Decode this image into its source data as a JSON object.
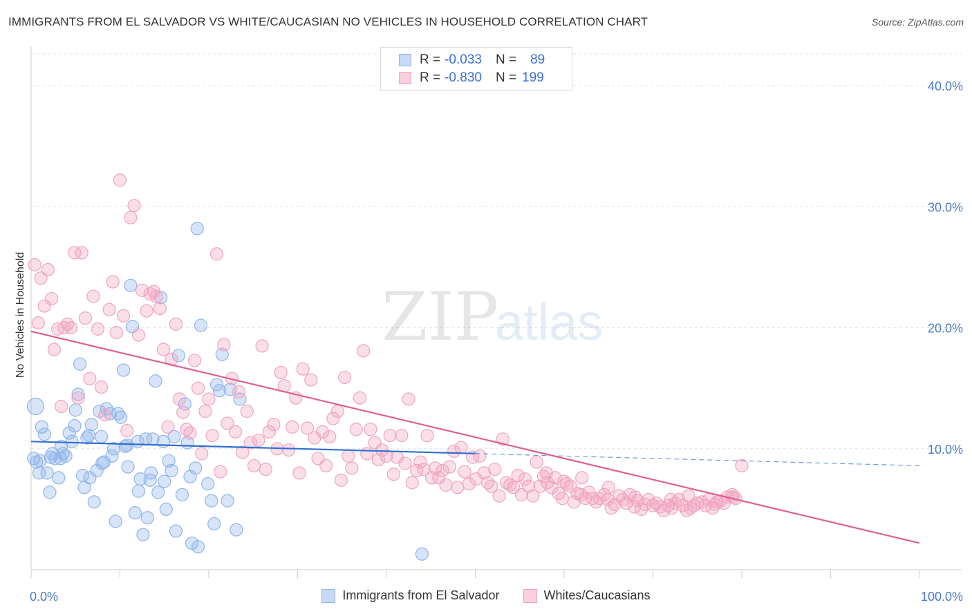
{
  "title": "IMMIGRANTS FROM EL SALVADOR VS WHITE/CAUCASIAN NO VEHICLES IN HOUSEHOLD CORRELATION CHART",
  "source": "Source: ZipAtlas.com",
  "watermark": {
    "zip": "ZIP",
    "atlas": "atlas"
  },
  "legend": {
    "rows": [
      {
        "r_label": "R = ",
        "r_value": "-0.033",
        "n_label": "N = ",
        "n_value": "89",
        "color": "#8fb4ea"
      },
      {
        "r_label": "R = ",
        "r_value": "-0.830",
        "n_label": "N = ",
        "n_value": "199",
        "color": "#f0a3bf"
      }
    ]
  },
  "bottom_legend": [
    "Immigrants from El Salvador",
    "Whites/Caucasians"
  ],
  "chart_data": {
    "type": "scatter",
    "title": "IMMIGRANTS FROM EL SALVADOR VS WHITE/CAUCASIAN NO VEHICLES IN HOUSEHOLD CORRELATION CHART",
    "xlabel": "",
    "ylabel": "No Vehicles in Household",
    "xlim": [
      0,
      100
    ],
    "ylim": [
      0,
      42
    ],
    "y_ticks": [
      "10.0%",
      "20.0%",
      "30.0%",
      "40.0%"
    ],
    "y_tick_values": [
      10,
      20,
      30,
      40
    ],
    "x_ticks": [
      "0.0%",
      "100.0%"
    ],
    "grid": true,
    "series": [
      {
        "name": "Immigrants from El Salvador",
        "color": "#8fb4ea",
        "line_color": "#2f6fd0",
        "trend": {
          "x0": 0,
          "y0": 10.6,
          "x1": 50,
          "y1": 9.6,
          "dashed_to": 100,
          "dashed_y": 8.6
        },
        "points": [
          [
            0.5,
            13.5
          ],
          [
            0.3,
            9.2
          ],
          [
            0.6,
            8.9
          ],
          [
            0.9,
            8.0
          ],
          [
            1.2,
            11.8
          ],
          [
            1.5,
            11.2
          ],
          [
            1.8,
            8.0
          ],
          [
            2.1,
            6.4
          ],
          [
            2.4,
            9.6
          ],
          [
            2.7,
            9.2
          ],
          [
            3.1,
            7.6
          ],
          [
            3.4,
            10.2
          ],
          [
            3.6,
            9.6
          ],
          [
            3.9,
            9.4
          ],
          [
            4.3,
            11.3
          ],
          [
            4.6,
            10.6
          ],
          [
            4.9,
            11.9
          ],
          [
            5.3,
            14.5
          ],
          [
            5.5,
            17.0
          ],
          [
            5.8,
            7.8
          ],
          [
            6.0,
            6.8
          ],
          [
            6.3,
            10.9
          ],
          [
            6.6,
            7.6
          ],
          [
            6.8,
            12.0
          ],
          [
            7.1,
            5.6
          ],
          [
            7.4,
            8.2
          ],
          [
            7.7,
            13.1
          ],
          [
            7.9,
            11.0
          ],
          [
            8.2,
            8.9
          ],
          [
            8.5,
            13.3
          ],
          [
            8.9,
            12.9
          ],
          [
            9.1,
            9.4
          ],
          [
            9.5,
            4.0
          ],
          [
            9.8,
            12.9
          ],
          [
            10.1,
            12.6
          ],
          [
            10.4,
            16.5
          ],
          [
            10.6,
            10.2
          ],
          [
            10.9,
            8.5
          ],
          [
            11.2,
            23.5
          ],
          [
            11.4,
            20.1
          ],
          [
            11.7,
            4.7
          ],
          [
            12.0,
            10.6
          ],
          [
            12.3,
            7.5
          ],
          [
            12.6,
            2.9
          ],
          [
            12.9,
            10.8
          ],
          [
            13.1,
            4.3
          ],
          [
            13.4,
            7.4
          ],
          [
            13.7,
            10.8
          ],
          [
            14.0,
            15.6
          ],
          [
            14.3,
            6.4
          ],
          [
            14.6,
            22.5
          ],
          [
            14.9,
            10.6
          ],
          [
            15.2,
            5.0
          ],
          [
            15.5,
            9.0
          ],
          [
            15.8,
            8.2
          ],
          [
            16.1,
            11.0
          ],
          [
            16.3,
            3.2
          ],
          [
            16.6,
            17.7
          ],
          [
            17.0,
            6.2
          ],
          [
            17.3,
            13.7
          ],
          [
            17.6,
            10.5
          ],
          [
            17.9,
            7.7
          ],
          [
            18.1,
            2.2
          ],
          [
            18.5,
            8.4
          ],
          [
            18.8,
            1.9
          ],
          [
            19.1,
            20.2
          ],
          [
            18.7,
            28.2
          ],
          [
            19.9,
            7.1
          ],
          [
            20.3,
            5.7
          ],
          [
            20.6,
            3.8
          ],
          [
            20.9,
            15.3
          ],
          [
            21.2,
            14.8
          ],
          [
            21.5,
            17.8
          ],
          [
            22.1,
            5.7
          ],
          [
            22.4,
            14.9
          ],
          [
            23.1,
            3.3
          ],
          [
            23.5,
            14.1
          ],
          [
            44.0,
            1.3
          ],
          [
            1.0,
            9.0
          ],
          [
            2.2,
            9.3
          ],
          [
            3.3,
            9.2
          ],
          [
            5.0,
            13.2
          ],
          [
            6.5,
            11.1
          ],
          [
            8.0,
            8.8
          ],
          [
            9.3,
            10.0
          ],
          [
            10.8,
            10.3
          ],
          [
            12.1,
            6.5
          ],
          [
            13.5,
            8.0
          ],
          [
            15.0,
            7.3
          ]
        ]
      },
      {
        "name": "Whites/Caucasians",
        "color": "#f0a3bf",
        "line_color": "#e0608e",
        "trend": {
          "x0": 0,
          "y0": 19.7,
          "x1": 100,
          "y1": 2.2
        },
        "points": [
          [
            0.4,
            25.2
          ],
          [
            0.8,
            20.4
          ],
          [
            1.1,
            24.1
          ],
          [
            1.5,
            21.8
          ],
          [
            1.9,
            24.8
          ],
          [
            2.3,
            22.4
          ],
          [
            2.6,
            18.2
          ],
          [
            3.0,
            19.9
          ],
          [
            3.4,
            13.5
          ],
          [
            3.7,
            20.0
          ],
          [
            4.1,
            20.3
          ],
          [
            4.5,
            20.0
          ],
          [
            4.9,
            26.2
          ],
          [
            5.3,
            14.2
          ],
          [
            5.7,
            26.2
          ],
          [
            6.1,
            20.8
          ],
          [
            6.6,
            15.8
          ],
          [
            7.0,
            22.6
          ],
          [
            7.5,
            19.9
          ],
          [
            7.9,
            15.1
          ],
          [
            8.3,
            12.8
          ],
          [
            8.8,
            21.5
          ],
          [
            9.2,
            23.8
          ],
          [
            9.6,
            19.6
          ],
          [
            10.0,
            32.2
          ],
          [
            10.4,
            21.0
          ],
          [
            10.8,
            11.5
          ],
          [
            11.2,
            29.1
          ],
          [
            11.6,
            30.1
          ],
          [
            12.1,
            19.4
          ],
          [
            12.5,
            23.1
          ],
          [
            13.0,
            21.4
          ],
          [
            13.4,
            22.8
          ],
          [
            13.8,
            23.0
          ],
          [
            14.1,
            22.6
          ],
          [
            14.5,
            21.6
          ],
          [
            14.9,
            18.2
          ],
          [
            15.4,
            11.8
          ],
          [
            15.8,
            17.4
          ],
          [
            16.3,
            20.3
          ],
          [
            16.7,
            14.1
          ],
          [
            17.1,
            13.0
          ],
          [
            17.5,
            11.6
          ],
          [
            17.9,
            11.3
          ],
          [
            18.4,
            17.3
          ],
          [
            18.8,
            15.0
          ],
          [
            19.2,
            9.6
          ],
          [
            19.6,
            13.1
          ],
          [
            20.0,
            14.1
          ],
          [
            20.4,
            11.1
          ],
          [
            20.9,
            26.1
          ],
          [
            21.3,
            8.1
          ],
          [
            21.7,
            18.6
          ],
          [
            22.1,
            12.1
          ],
          [
            22.6,
            15.8
          ],
          [
            23.0,
            11.4
          ],
          [
            23.4,
            14.7
          ],
          [
            23.8,
            9.7
          ],
          [
            24.3,
            13.1
          ],
          [
            24.7,
            10.5
          ],
          [
            25.1,
            8.6
          ],
          [
            25.6,
            10.7
          ],
          [
            26.0,
            18.5
          ],
          [
            26.4,
            8.3
          ],
          [
            26.8,
            11.4
          ],
          [
            27.3,
            12.0
          ],
          [
            27.7,
            10.0
          ],
          [
            28.1,
            16.3
          ],
          [
            28.5,
            15.2
          ],
          [
            29.0,
            9.9
          ],
          [
            29.4,
            11.8
          ],
          [
            29.8,
            14.2
          ],
          [
            30.2,
            8.0
          ],
          [
            30.6,
            16.6
          ],
          [
            31.1,
            11.7
          ],
          [
            31.5,
            15.7
          ],
          [
            31.9,
            10.9
          ],
          [
            32.3,
            9.2
          ],
          [
            32.8,
            11.4
          ],
          [
            33.2,
            8.6
          ],
          [
            33.6,
            11.0
          ],
          [
            34.0,
            12.5
          ],
          [
            34.5,
            13.1
          ],
          [
            34.9,
            7.4
          ],
          [
            35.3,
            15.9
          ],
          [
            35.7,
            9.4
          ],
          [
            36.1,
            8.4
          ],
          [
            36.6,
            11.6
          ],
          [
            37.0,
            14.2
          ],
          [
            37.4,
            18.1
          ],
          [
            37.8,
            9.6
          ],
          [
            38.2,
            11.6
          ],
          [
            38.7,
            10.5
          ],
          [
            39.1,
            9.1
          ],
          [
            39.5,
            9.9
          ],
          [
            40.0,
            9.4
          ],
          [
            40.4,
            11.1
          ],
          [
            40.8,
            7.9
          ],
          [
            41.2,
            9.3
          ],
          [
            41.7,
            11.1
          ],
          [
            42.1,
            8.8
          ],
          [
            42.5,
            14.1
          ],
          [
            42.9,
            7.2
          ],
          [
            43.4,
            8.2
          ],
          [
            43.8,
            8.9
          ],
          [
            44.2,
            8.3
          ],
          [
            44.6,
            11.1
          ],
          [
            45.1,
            7.6
          ],
          [
            45.5,
            8.4
          ],
          [
            45.9,
            7.6
          ],
          [
            46.3,
            8.2
          ],
          [
            46.7,
            7.0
          ],
          [
            47.1,
            8.5
          ],
          [
            47.6,
            9.8
          ],
          [
            48.0,
            6.8
          ],
          [
            48.4,
            10.1
          ],
          [
            48.8,
            8.1
          ],
          [
            49.3,
            7.1
          ],
          [
            49.7,
            9.3
          ],
          [
            50.1,
            7.5
          ],
          [
            50.5,
            9.4
          ],
          [
            51.0,
            8.0
          ],
          [
            51.4,
            7.2
          ],
          [
            51.8,
            6.9
          ],
          [
            52.2,
            8.3
          ],
          [
            52.7,
            6.1
          ],
          [
            53.1,
            10.8
          ],
          [
            53.5,
            7.2
          ],
          [
            53.9,
            7.0
          ],
          [
            54.3,
            6.8
          ],
          [
            54.8,
            7.8
          ],
          [
            55.2,
            6.2
          ],
          [
            55.6,
            7.5
          ],
          [
            56.0,
            6.9
          ],
          [
            56.5,
            6.1
          ],
          [
            56.9,
            8.9
          ],
          [
            57.3,
            6.9
          ],
          [
            57.7,
            7.7
          ],
          [
            58.1,
            7.2
          ],
          [
            58.6,
            6.8
          ],
          [
            59.0,
            7.6
          ],
          [
            59.4,
            6.3
          ],
          [
            59.8,
            5.9
          ],
          [
            60.3,
            7.1
          ],
          [
            60.7,
            6.9
          ],
          [
            61.1,
            5.6
          ],
          [
            61.5,
            6.3
          ],
          [
            61.9,
            6.2
          ],
          [
            62.4,
            5.9
          ],
          [
            62.8,
            6.4
          ],
          [
            63.2,
            5.9
          ],
          [
            63.6,
            5.6
          ],
          [
            64.0,
            5.9
          ],
          [
            64.5,
            6.2
          ],
          [
            64.9,
            5.8
          ],
          [
            65.3,
            5.1
          ],
          [
            65.7,
            5.4
          ],
          [
            66.2,
            6.1
          ],
          [
            66.6,
            5.8
          ],
          [
            67.0,
            5.5
          ],
          [
            67.4,
            6.2
          ],
          [
            67.9,
            5.2
          ],
          [
            68.3,
            5.7
          ],
          [
            68.7,
            5.0
          ],
          [
            69.1,
            5.4
          ],
          [
            69.5,
            5.8
          ],
          [
            70.0,
            5.3
          ],
          [
            70.4,
            5.5
          ],
          [
            70.8,
            5.2
          ],
          [
            71.2,
            4.9
          ],
          [
            71.7,
            5.3
          ],
          [
            72.1,
            5.1
          ],
          [
            72.5,
            5.5
          ],
          [
            72.9,
            5.8
          ],
          [
            73.4,
            5.3
          ],
          [
            73.8,
            4.9
          ],
          [
            74.2,
            5.1
          ],
          [
            74.6,
            5.3
          ],
          [
            75.0,
            5.5
          ],
          [
            75.5,
            5.6
          ],
          [
            75.9,
            5.3
          ],
          [
            76.3,
            5.8
          ],
          [
            76.7,
            5.1
          ],
          [
            77.2,
            5.6
          ],
          [
            77.6,
            5.7
          ],
          [
            78.0,
            5.5
          ],
          [
            78.4,
            6.0
          ],
          [
            78.9,
            6.2
          ],
          [
            79.3,
            5.9
          ],
          [
            80.0,
            8.6
          ],
          [
            65.0,
            6.8
          ],
          [
            68.0,
            6.0
          ],
          [
            72.0,
            5.8
          ],
          [
            74.0,
            6.1
          ],
          [
            77.0,
            5.4
          ],
          [
            79.0,
            6.0
          ],
          [
            62.0,
            7.6
          ],
          [
            60.0,
            7.3
          ],
          [
            58.0,
            8.0
          ]
        ]
      }
    ]
  }
}
